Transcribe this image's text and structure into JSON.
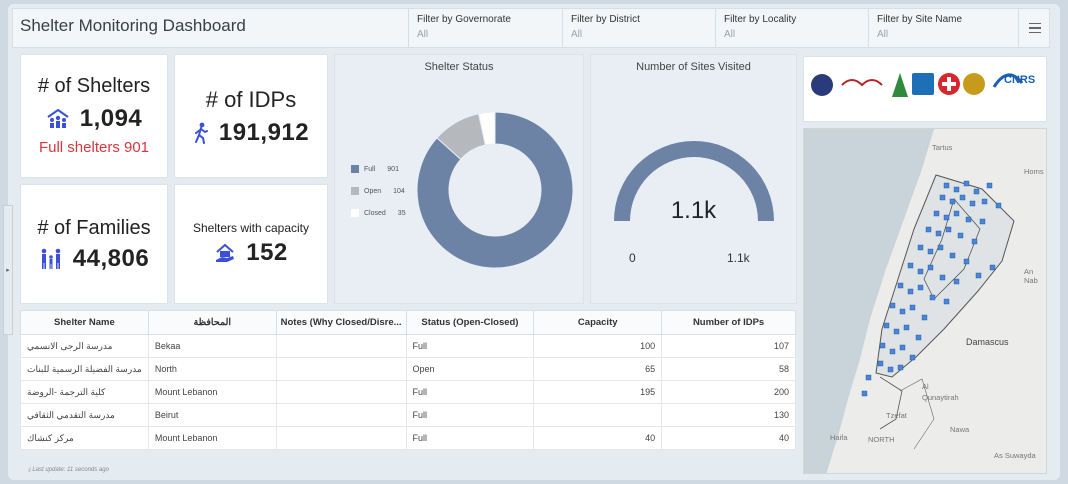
{
  "header": {
    "title": "Shelter Monitoring Dashboard",
    "filters": [
      {
        "label": "Filter by Governorate",
        "value": "All"
      },
      {
        "label": "Filter by District",
        "value": "All"
      },
      {
        "label": "Filter by Locality",
        "value": "All"
      },
      {
        "label": "Filter by Site Name",
        "value": "All"
      }
    ]
  },
  "indicators": {
    "shelters": {
      "label": "# of Shelters",
      "value": "1,094",
      "sub": "Full shelters 901"
    },
    "idps": {
      "label": "# of IDPs",
      "value": "191,912"
    },
    "families": {
      "label": "# of Families",
      "value": "44,806"
    },
    "capacity": {
      "label": "Shelters with capacity",
      "value": "152"
    }
  },
  "colors": {
    "accent": "#3b4fd8",
    "red": "#d9363e",
    "full": "#6d83a6",
    "open": "#b5b9be",
    "closed": "#ffffff"
  },
  "chart_data": [
    {
      "type": "pie",
      "title": "Shelter Status",
      "categories": [
        "Full",
        "Open",
        "Closed"
      ],
      "values": [
        901,
        104,
        35
      ]
    },
    {
      "type": "gauge",
      "title": "Number of Sites Visited",
      "value": 1100,
      "value_label": "1.1k",
      "min": 0,
      "max": 1100,
      "min_label": "0",
      "max_label": "1.1k"
    }
  ],
  "table": {
    "columns": [
      "Shelter Name",
      "المحافظة",
      "Notes (Why Closed/Disre...",
      "Status (Open-Closed)",
      "Capacity",
      "Number of IDPs"
    ],
    "rows": [
      [
        "مدرسة الرجى الانسمي",
        "Bekaa",
        "",
        "Full",
        "100",
        "107"
      ],
      [
        "مدرسة الفضيلة الرسمية للبنات",
        "North",
        "",
        "Open",
        "65",
        "58"
      ],
      [
        "كلية الترجمة -الروضة",
        "Mount Lebanon",
        "",
        "Full",
        "195",
        "200"
      ],
      [
        "مدرسة التقدمي الثقافي",
        "Beirut",
        "",
        "Full",
        "",
        "130"
      ],
      [
        "مركز كنشاك",
        "Mount Lebanon",
        "",
        "Full",
        "40",
        "40"
      ]
    ],
    "last_update": "Last update: 11 seconds ago"
  },
  "map": {
    "labels": [
      "Tartus",
      "Homs",
      "An Nab",
      "Damascus",
      "Al Qunaytirah",
      "Tzefat",
      "Nawa",
      "Haifa",
      "NORTH",
      "As Suwayda"
    ]
  }
}
